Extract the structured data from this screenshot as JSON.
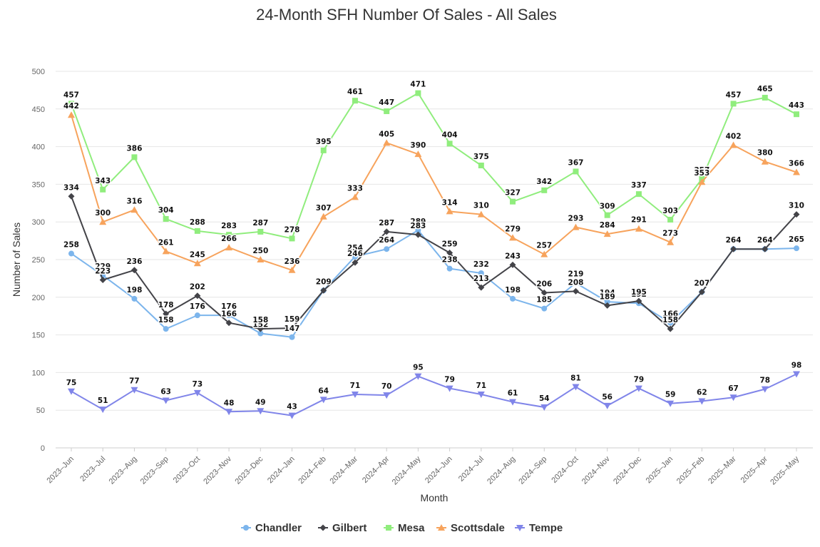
{
  "chart_data": {
    "type": "line",
    "title": "24-Month SFH Number Of Sales - All Sales",
    "xlabel": "Month",
    "ylabel": "Number of Sales",
    "ylim": [
      0,
      500
    ],
    "yticks": [
      0,
      50,
      100,
      150,
      200,
      250,
      300,
      350,
      400,
      450,
      500
    ],
    "grid": true,
    "legend_position": "bottom",
    "categories": [
      "2023–Jun",
      "2023–Jul",
      "2023–Aug",
      "2023–Sep",
      "2023–Oct",
      "2023–Nov",
      "2023–Dec",
      "2024–Jan",
      "2024–Feb",
      "2024–Mar",
      "2024–Apr",
      "2024–May",
      "2024–Jun",
      "2024–Jul",
      "2024–Aug",
      "2024–Sep",
      "2024–Oct",
      "2024–Nov",
      "2024–Dec",
      "2025–Jan",
      "2025–Feb",
      "2025–Mar",
      "2025–Apr",
      "2025–May"
    ],
    "series": [
      {
        "name": "Chandler",
        "color": "#7cb5ec",
        "marker": "circle",
        "values": [
          258,
          229,
          198,
          158,
          176,
          176,
          152,
          147,
          209,
          254,
          264,
          289,
          238,
          232,
          198,
          185,
          219,
          194,
          192,
          166,
          207,
          264,
          264,
          265
        ]
      },
      {
        "name": "Gilbert",
        "color": "#434348",
        "marker": "diamond",
        "values": [
          334,
          223,
          236,
          178,
          202,
          166,
          158,
          159,
          209,
          246,
          287,
          283,
          259,
          213,
          243,
          206,
          208,
          189,
          195,
          158,
          207,
          264,
          264,
          310
        ]
      },
      {
        "name": "Mesa",
        "color": "#90ed7d",
        "marker": "square",
        "values": [
          457,
          343,
          386,
          304,
          288,
          283,
          287,
          278,
          395,
          461,
          447,
          471,
          404,
          375,
          327,
          342,
          367,
          309,
          337,
          303,
          357,
          457,
          465,
          443
        ]
      },
      {
        "name": "Scottsdale",
        "color": "#f7a35c",
        "marker": "triangle",
        "values": [
          442,
          300,
          316,
          261,
          245,
          266,
          250,
          236,
          307,
          333,
          405,
          390,
          314,
          310,
          279,
          257,
          293,
          284,
          291,
          273,
          353,
          402,
          380,
          366
        ]
      },
      {
        "name": "Tempe",
        "color": "#8085e9",
        "marker": "triangle-down",
        "values": [
          75,
          51,
          77,
          63,
          73,
          48,
          49,
          43,
          64,
          71,
          70,
          95,
          79,
          71,
          61,
          54,
          81,
          56,
          79,
          59,
          62,
          67,
          78,
          98
        ]
      }
    ]
  }
}
